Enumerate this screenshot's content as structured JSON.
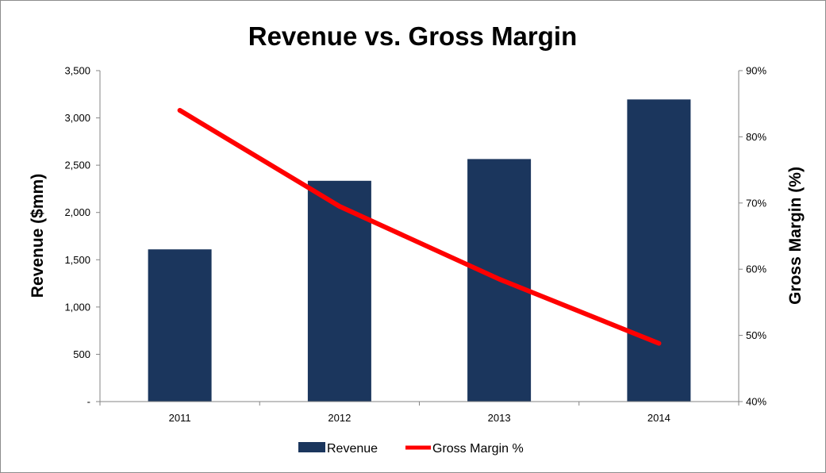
{
  "chart_data": {
    "type": "bar+line",
    "title": "Revenue vs. Gross Margin",
    "categories": [
      "2011",
      "2012",
      "2013",
      "2014"
    ],
    "series": [
      {
        "name": "Revenue",
        "type": "bar",
        "axis": "left",
        "color": "#1b365d",
        "values": [
          1610,
          2335,
          2565,
          3195
        ]
      },
      {
        "name": "Gross Margin %",
        "type": "line",
        "axis": "right",
        "color": "#ff0000",
        "values": [
          84,
          69.5,
          58.5,
          48.8
        ]
      }
    ],
    "y_left": {
      "label": "Revenue ($mm)",
      "range": [
        0,
        3500
      ],
      "ticks": [
        0,
        500,
        1000,
        1500,
        2000,
        2500,
        3000,
        3500
      ],
      "tick_labels": [
        "-",
        "500",
        "1,000",
        "1,500",
        "2,000",
        "2,500",
        "3,000",
        "3,500"
      ]
    },
    "y_right": {
      "label": "Gross Margin (%)",
      "range": [
        40,
        90
      ],
      "ticks": [
        40,
        50,
        60,
        70,
        80,
        90
      ],
      "tick_labels": [
        "40%",
        "50%",
        "60%",
        "70%",
        "80%",
        "90%"
      ]
    },
    "xlabel": "",
    "grid": false,
    "legend_position": "bottom"
  }
}
